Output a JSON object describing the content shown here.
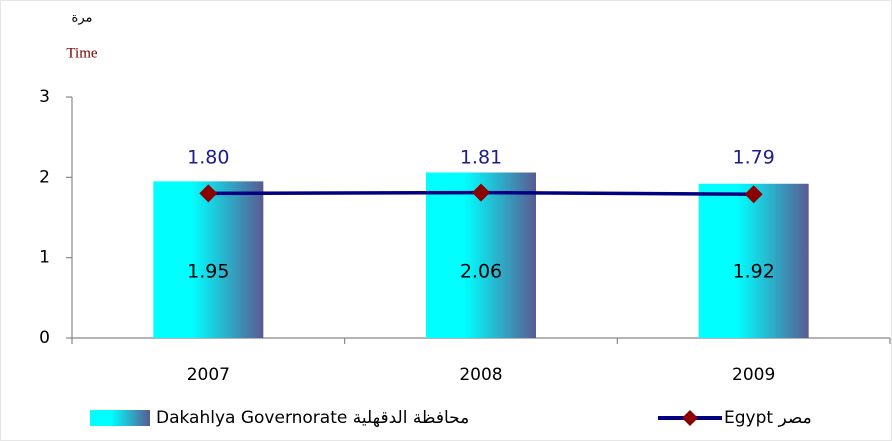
{
  "chart_data": {
    "type": "bar",
    "y_label_top": "مرة",
    "y_label": "Time",
    "categories": [
      "2007",
      "2008",
      "2009"
    ],
    "series": [
      {
        "name": "Dakahlya Governorate محافظة الدقهلية",
        "type": "bar",
        "color": "#00ffff",
        "values": [
          1.95,
          2.06,
          1.92
        ]
      },
      {
        "name": "Egypt مصر",
        "type": "line",
        "color": "#000080",
        "marker_color": "#8b0000",
        "values": [
          1.8,
          1.81,
          1.79
        ],
        "value_labels": [
          "1.80",
          "1.81",
          "1.79"
        ]
      }
    ],
    "ylim": [
      0,
      3
    ],
    "yticks": [
      0,
      1,
      2,
      3
    ],
    "grid": false
  }
}
